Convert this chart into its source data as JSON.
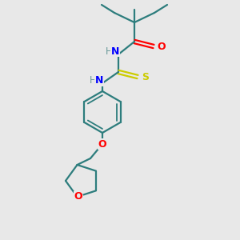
{
  "background_color": "#e8e8e8",
  "bond_color": "#2d7d7d",
  "atom_colors": {
    "N": "#0000ff",
    "O": "#ff0000",
    "S": "#cccc00",
    "H": "#6b9a9a"
  },
  "figsize": [
    3.0,
    3.0
  ],
  "dpi": 100
}
